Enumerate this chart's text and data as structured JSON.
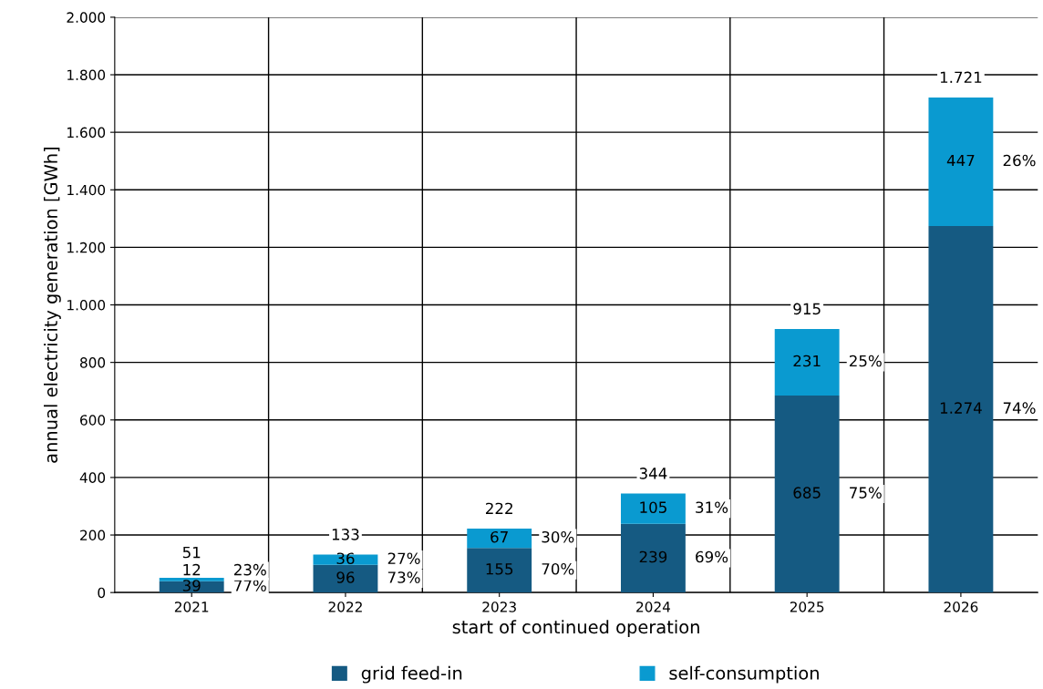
{
  "chart_data": {
    "type": "bar",
    "stacked": true,
    "xlabel": "start of continued operation",
    "ylabel": "annual electricity generation [GWh]",
    "categories": [
      "2021",
      "2022",
      "2023",
      "2024",
      "2025",
      "2026"
    ],
    "series": [
      {
        "name": "grid feed-in",
        "color": "#155a82",
        "values": [
          39,
          96,
          155,
          239,
          685,
          1274
        ],
        "value_labels": [
          "39",
          "96",
          "155",
          "239",
          "685",
          "1.274"
        ]
      },
      {
        "name": "self-consumption",
        "color": "#0a9ad0",
        "values": [
          12,
          36,
          67,
          105,
          231,
          447
        ],
        "value_labels": [
          "12",
          "36",
          "67",
          "105",
          "231",
          "447"
        ]
      }
    ],
    "totals": [
      "51",
      "133",
      "222",
      "344",
      "915",
      "1.721"
    ],
    "annotations": [
      "77%",
      "23%",
      "73%",
      "27%",
      "70%",
      "30%",
      "69%",
      "31%",
      "75%",
      "25%",
      "74%",
      "26%"
    ],
    "ylim": [
      0,
      2000
    ],
    "yticks": [
      0,
      {
        "value": 200,
        "label": "200"
      },
      {
        "value": 400,
        "label": "400"
      },
      {
        "value": 600,
        "label": "600"
      },
      {
        "value": 800,
        "label": "800"
      },
      {
        "value": 1000,
        "label": "1.000"
      },
      {
        "value": 1200,
        "label": "1.200"
      },
      {
        "value": 1400,
        "label": "1.400"
      },
      {
        "value": 1600,
        "label": "1.600"
      },
      {
        "value": 1800,
        "label": "1.800"
      },
      {
        "value": 2000,
        "label": "2.000"
      }
    ],
    "grid": true,
    "legend": "bottom"
  }
}
